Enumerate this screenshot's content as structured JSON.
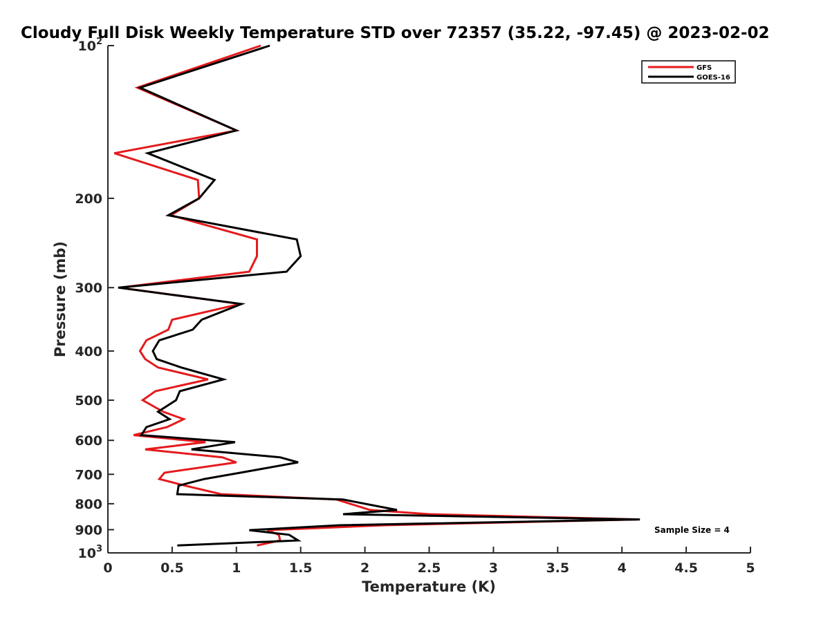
{
  "chart_data": {
    "type": "line",
    "title": "Cloudy Full Disk Weekly Temperature STD over 72357 (35.22, -97.45) @ 2023-02-02",
    "xlabel": "Temperature (K)",
    "ylabel": "Pressure (mb)",
    "xlim": [
      0,
      5
    ],
    "ylim": [
      1000,
      100
    ],
    "yscale": "log",
    "x_ticks": [
      0,
      0.5,
      1,
      1.5,
      2,
      2.5,
      3,
      3.5,
      4,
      4.5,
      5
    ],
    "x_tick_labels": [
      "0",
      "0.5",
      "1",
      "1.5",
      "2",
      "2.5",
      "3",
      "3.5",
      "4",
      "4.5",
      "5"
    ],
    "y_ticks": [
      {
        "value": 100,
        "base": "10",
        "exp": "2"
      },
      {
        "value": 200,
        "label": "200"
      },
      {
        "value": 300,
        "label": "300"
      },
      {
        "value": 400,
        "label": "400"
      },
      {
        "value": 500,
        "label": "500"
      },
      {
        "value": 600,
        "label": "600"
      },
      {
        "value": 700,
        "label": "700"
      },
      {
        "value": 800,
        "label": "800"
      },
      {
        "value": 900,
        "label": "900"
      },
      {
        "value": 1000,
        "base": "10",
        "exp": "3"
      }
    ],
    "legend_position": "top-right",
    "annotation": "Sample Size = 4",
    "series": [
      {
        "name": "GFS",
        "color": "#e41a1c",
        "points": [
          [
            1.19,
            100
          ],
          [
            0.23,
            121
          ],
          [
            1.0,
            147
          ],
          [
            0.05,
            163
          ],
          [
            0.7,
            184
          ],
          [
            0.71,
            200
          ],
          [
            0.49,
            216
          ],
          [
            1.16,
            241
          ],
          [
            1.16,
            260
          ],
          [
            1.1,
            279
          ],
          [
            0.09,
            300
          ],
          [
            1.03,
            323
          ],
          [
            0.5,
            347
          ],
          [
            0.47,
            363
          ],
          [
            0.3,
            381
          ],
          [
            0.25,
            400
          ],
          [
            0.29,
            415
          ],
          [
            0.39,
            431
          ],
          [
            0.78,
            455
          ],
          [
            0.37,
            480
          ],
          [
            0.27,
            500
          ],
          [
            0.43,
            527
          ],
          [
            0.59,
            545
          ],
          [
            0.46,
            565
          ],
          [
            0.2,
            586
          ],
          [
            0.76,
            605
          ],
          [
            0.29,
            625
          ],
          [
            0.89,
            648
          ],
          [
            1.0,
            663
          ],
          [
            0.44,
            695
          ],
          [
            0.4,
            715
          ],
          [
            0.6,
            737
          ],
          [
            0.88,
            766
          ],
          [
            1.78,
            785
          ],
          [
            2.04,
            823
          ],
          [
            2.5,
            839
          ],
          [
            4.12,
            859
          ],
          [
            2.15,
            882
          ],
          [
            1.24,
            902
          ],
          [
            1.33,
            921
          ],
          [
            1.34,
            945
          ],
          [
            1.16,
            967
          ]
        ]
      },
      {
        "name": "GOES-16",
        "color": "#000000",
        "points": [
          [
            1.26,
            100
          ],
          [
            0.25,
            121
          ],
          [
            1.0,
            147
          ],
          [
            0.31,
            163
          ],
          [
            0.83,
            184
          ],
          [
            0.71,
            200
          ],
          [
            0.47,
            216
          ],
          [
            1.47,
            241
          ],
          [
            1.5,
            260
          ],
          [
            1.39,
            279
          ],
          [
            0.08,
            300
          ],
          [
            1.04,
            323
          ],
          [
            0.73,
            347
          ],
          [
            0.66,
            363
          ],
          [
            0.4,
            381
          ],
          [
            0.35,
            400
          ],
          [
            0.38,
            415
          ],
          [
            0.57,
            431
          ],
          [
            0.9,
            455
          ],
          [
            0.56,
            480
          ],
          [
            0.53,
            500
          ],
          [
            0.39,
            527
          ],
          [
            0.48,
            545
          ],
          [
            0.3,
            565
          ],
          [
            0.26,
            586
          ],
          [
            0.99,
            605
          ],
          [
            0.65,
            625
          ],
          [
            1.34,
            648
          ],
          [
            1.48,
            663
          ],
          [
            1.03,
            695
          ],
          [
            0.75,
            715
          ],
          [
            0.55,
            737
          ],
          [
            0.54,
            766
          ],
          [
            1.83,
            785
          ],
          [
            2.25,
            823
          ],
          [
            1.83,
            839
          ],
          [
            4.14,
            859
          ],
          [
            1.8,
            882
          ],
          [
            1.1,
            902
          ],
          [
            1.41,
            921
          ],
          [
            1.48,
            945
          ],
          [
            0.54,
            967
          ]
        ]
      }
    ]
  }
}
